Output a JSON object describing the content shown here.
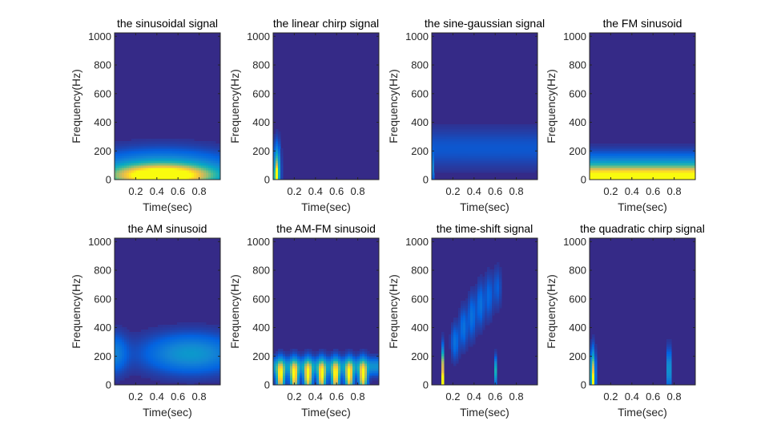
{
  "chart_data": [
    {
      "type": "heatmap",
      "title": "the sinusoidal signal",
      "xlabel": "Time(sec)",
      "ylabel": "Frequency(Hz)",
      "xlim": [
        0,
        1
      ],
      "ylim": [
        0,
        1024
      ],
      "xticks": [
        "0.2",
        "0.4",
        "0.6",
        "0.8"
      ],
      "yticks": [
        "0",
        "200",
        "400",
        "600",
        "800",
        "1000"
      ],
      "energy_blobs": [
        {
          "t": 0.45,
          "f": 30,
          "t_spread": 0.3,
          "f_spread": 45,
          "level": 1.0
        },
        {
          "t": 0.45,
          "f": 60,
          "t_spread": 0.45,
          "f_spread": 90,
          "level": 0.45
        }
      ]
    },
    {
      "type": "heatmap",
      "title": "the linear chirp signal",
      "xlabel": "Time(sec)",
      "ylabel": "Frequency(Hz)",
      "xlim": [
        0,
        1
      ],
      "ylim": [
        0,
        1024
      ],
      "xticks": [
        "0.2",
        "0.4",
        "0.6",
        "0.8"
      ],
      "yticks": [
        "0",
        "200",
        "400",
        "600",
        "800",
        "1000"
      ],
      "energy_blobs": [
        {
          "t": 0.035,
          "f": 60,
          "t_spread": 0.02,
          "f_spread": 110,
          "level": 0.7
        },
        {
          "t": 0.03,
          "f": 20,
          "t_spread": 0.01,
          "f_spread": 40,
          "level": 0.9
        }
      ]
    },
    {
      "type": "heatmap",
      "title": "the sine-gaussian signal",
      "xlabel": "Time(sec)",
      "ylabel": "Frequency(Hz)",
      "xlim": [
        0,
        1
      ],
      "ylim": [
        0,
        1024
      ],
      "xticks": [
        "0.2",
        "0.4",
        "0.6",
        "0.8"
      ],
      "yticks": [
        "0",
        "200",
        "400",
        "600",
        "800",
        "1000"
      ],
      "energy_blobs": [
        {
          "t": 0.5,
          "f": 220,
          "t_spread": 5,
          "f_spread": 90,
          "level": 0.1
        },
        {
          "t": 0.005,
          "f": 80,
          "t_spread": 0.005,
          "f_spread": 60,
          "level": 0.5
        }
      ]
    },
    {
      "type": "heatmap",
      "title": "the FM sinusoid",
      "xlabel": "Time(sec)",
      "ylabel": "Frequency(Hz)",
      "xlim": [
        0,
        1
      ],
      "ylim": [
        0,
        1024
      ],
      "xticks": [
        "0.2",
        "0.4",
        "0.6",
        "0.8"
      ],
      "yticks": [
        "0",
        "200",
        "400",
        "600",
        "800",
        "1000"
      ],
      "energy_blobs": [
        {
          "t": 0.5,
          "f": 20,
          "t_spread": 5,
          "f_spread": 45,
          "level": 0.85
        },
        {
          "t": 0.5,
          "f": 80,
          "t_spread": 5,
          "f_spread": 70,
          "level": 0.35
        }
      ]
    },
    {
      "type": "heatmap",
      "title": "the AM sinusoid",
      "xlabel": "Time(sec)",
      "ylabel": "Frequency(Hz)",
      "xlim": [
        0,
        1
      ],
      "ylim": [
        0,
        1024
      ],
      "xticks": [
        "0.2",
        "0.4",
        "0.6",
        "0.8"
      ],
      "yticks": [
        "0",
        "200",
        "400",
        "600",
        "800",
        "1000"
      ],
      "energy_blobs": [
        {
          "t": 0.72,
          "f": 220,
          "t_spread": 0.3,
          "f_spread": 90,
          "level": 0.32
        },
        {
          "t": 0.0,
          "f": 220,
          "t_spread": 0.08,
          "f_spread": 90,
          "level": 0.22
        }
      ]
    },
    {
      "type": "heatmap",
      "title": "the AM-FM sinusoid",
      "xlabel": "Time(sec)",
      "ylabel": "Frequency(Hz)",
      "xlim": [
        0,
        1
      ],
      "ylim": [
        0,
        1024
      ],
      "xticks": [
        "0.2",
        "0.4",
        "0.6",
        "0.8"
      ],
      "yticks": [
        "0",
        "200",
        "400",
        "600",
        "800",
        "1000"
      ],
      "energy_blobs": [
        {
          "t": 0.07,
          "f": 60,
          "t_spread": 0.025,
          "f_spread": 70,
          "level": 0.95
        },
        {
          "t": 0.2,
          "f": 60,
          "t_spread": 0.025,
          "f_spread": 70,
          "level": 0.95
        },
        {
          "t": 0.33,
          "f": 60,
          "t_spread": 0.025,
          "f_spread": 70,
          "level": 0.95
        },
        {
          "t": 0.46,
          "f": 60,
          "t_spread": 0.025,
          "f_spread": 70,
          "level": 0.95
        },
        {
          "t": 0.59,
          "f": 60,
          "t_spread": 0.025,
          "f_spread": 70,
          "level": 0.95
        },
        {
          "t": 0.72,
          "f": 60,
          "t_spread": 0.025,
          "f_spread": 70,
          "level": 0.95
        },
        {
          "t": 0.85,
          "f": 60,
          "t_spread": 0.025,
          "f_spread": 70,
          "level": 0.95
        },
        {
          "t": 0.5,
          "f": 130,
          "t_spread": 5,
          "f_spread": 40,
          "level": 0.3
        }
      ]
    },
    {
      "type": "heatmap",
      "title": "the time-shift signal",
      "xlabel": "Time(sec)",
      "ylabel": "Frequency(Hz)",
      "xlim": [
        0,
        1
      ],
      "ylim": [
        0,
        1024
      ],
      "xticks": [
        "0.2",
        "0.4",
        "0.6",
        "0.8"
      ],
      "yticks": [
        "0",
        "200",
        "400",
        "600",
        "800",
        "1000"
      ],
      "energy_blobs": [
        {
          "t": 0.1,
          "f": 120,
          "t_spread": 0.006,
          "f_spread": 90,
          "level": 0.8
        },
        {
          "t": 0.1,
          "f": 30,
          "t_spread": 0.004,
          "f_spread": 30,
          "level": 1.0
        },
        {
          "t": 0.6,
          "f": 100,
          "t_spread": 0.006,
          "f_spread": 60,
          "level": 0.45
        },
        {
          "t": 0.22,
          "f": 300,
          "t_spread": 0.025,
          "f_spread": 80,
          "level": 0.18
        },
        {
          "t": 0.3,
          "f": 400,
          "t_spread": 0.025,
          "f_spread": 90,
          "level": 0.18
        },
        {
          "t": 0.38,
          "f": 480,
          "t_spread": 0.025,
          "f_spread": 100,
          "level": 0.18
        },
        {
          "t": 0.46,
          "f": 560,
          "t_spread": 0.025,
          "f_spread": 100,
          "level": 0.18
        },
        {
          "t": 0.54,
          "f": 620,
          "t_spread": 0.025,
          "f_spread": 100,
          "level": 0.15
        },
        {
          "t": 0.62,
          "f": 680,
          "t_spread": 0.025,
          "f_spread": 90,
          "level": 0.12
        }
      ]
    },
    {
      "type": "heatmap",
      "title": "the quadratic chirp signal",
      "xlabel": "Time(sec)",
      "ylabel": "Frequency(Hz)",
      "xlim": [
        0,
        1
      ],
      "ylim": [
        0,
        1024
      ],
      "xticks": [
        "0.2",
        "0.4",
        "0.6",
        "0.8"
      ],
      "yticks": [
        "0",
        "200",
        "400",
        "600",
        "800",
        "1000"
      ],
      "energy_blobs": [
        {
          "t": 0.03,
          "f": 80,
          "t_spread": 0.015,
          "f_spread": 100,
          "level": 0.85
        },
        {
          "t": 0.03,
          "f": 20,
          "t_spread": 0.006,
          "f_spread": 30,
          "level": 1.0
        },
        {
          "t": 0.75,
          "f": 110,
          "t_spread": 0.01,
          "f_spread": 90,
          "level": 0.55
        }
      ]
    }
  ],
  "colormap": [
    "#352a87",
    "#0363e1",
    "#1485d4",
    "#06a7c6",
    "#38b99e",
    "#92bf73",
    "#d9ba56",
    "#fcce2e",
    "#f9fb0e"
  ]
}
